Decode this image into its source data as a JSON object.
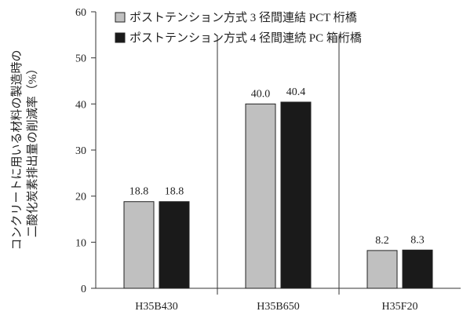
{
  "chart_data": {
    "type": "bar",
    "title": "",
    "xlabel": "",
    "ylabel_lines": [
      "コンクリートに用いる材料の製造時の",
      "二酸化炭素排出量の削減率（%）"
    ],
    "ylim": [
      0,
      60
    ],
    "yticks": [
      0,
      10,
      20,
      30,
      40,
      50,
      60
    ],
    "categories": [
      "H35B430",
      "H35B650",
      "H35F20"
    ],
    "series": [
      {
        "name": "ポストテンション方式 3 径間連結 PCT 桁橋",
        "values": [
          18.8,
          40.0,
          8.2
        ],
        "labels": [
          "18.8",
          "40.0",
          "8.2"
        ],
        "color": "#c0c0c0"
      },
      {
        "name": "ポストテンション方式 4 径間連続 PC 箱桁橋",
        "values": [
          18.8,
          40.4,
          8.3
        ],
        "labels": [
          "18.8",
          "40.4",
          "8.3"
        ],
        "color": "#1a1a1a"
      }
    ],
    "grid": false,
    "category_dividers": true,
    "legend": "top-left"
  }
}
